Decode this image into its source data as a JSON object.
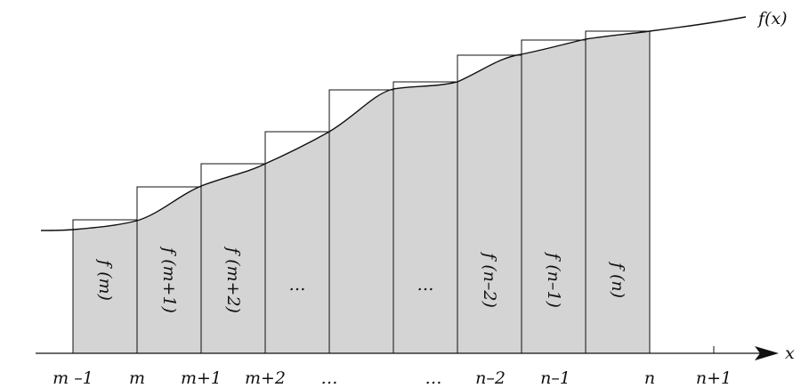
{
  "diagram": {
    "curve_label": "f(x)",
    "axis_label": "x",
    "x_ticks": [
      "m –1",
      "m",
      "m+1",
      "m+2",
      "…",
      "…",
      "n–2",
      "n–1",
      "n",
      "n+1"
    ],
    "bar_labels": [
      "f (m)",
      "f (m+1)",
      "f (m+2)",
      "…",
      "…",
      "f (n–2)",
      "f (n–1)",
      "f (n)"
    ],
    "colors": {
      "fill": "#d4d4d4",
      "stroke": "#111111"
    }
  }
}
